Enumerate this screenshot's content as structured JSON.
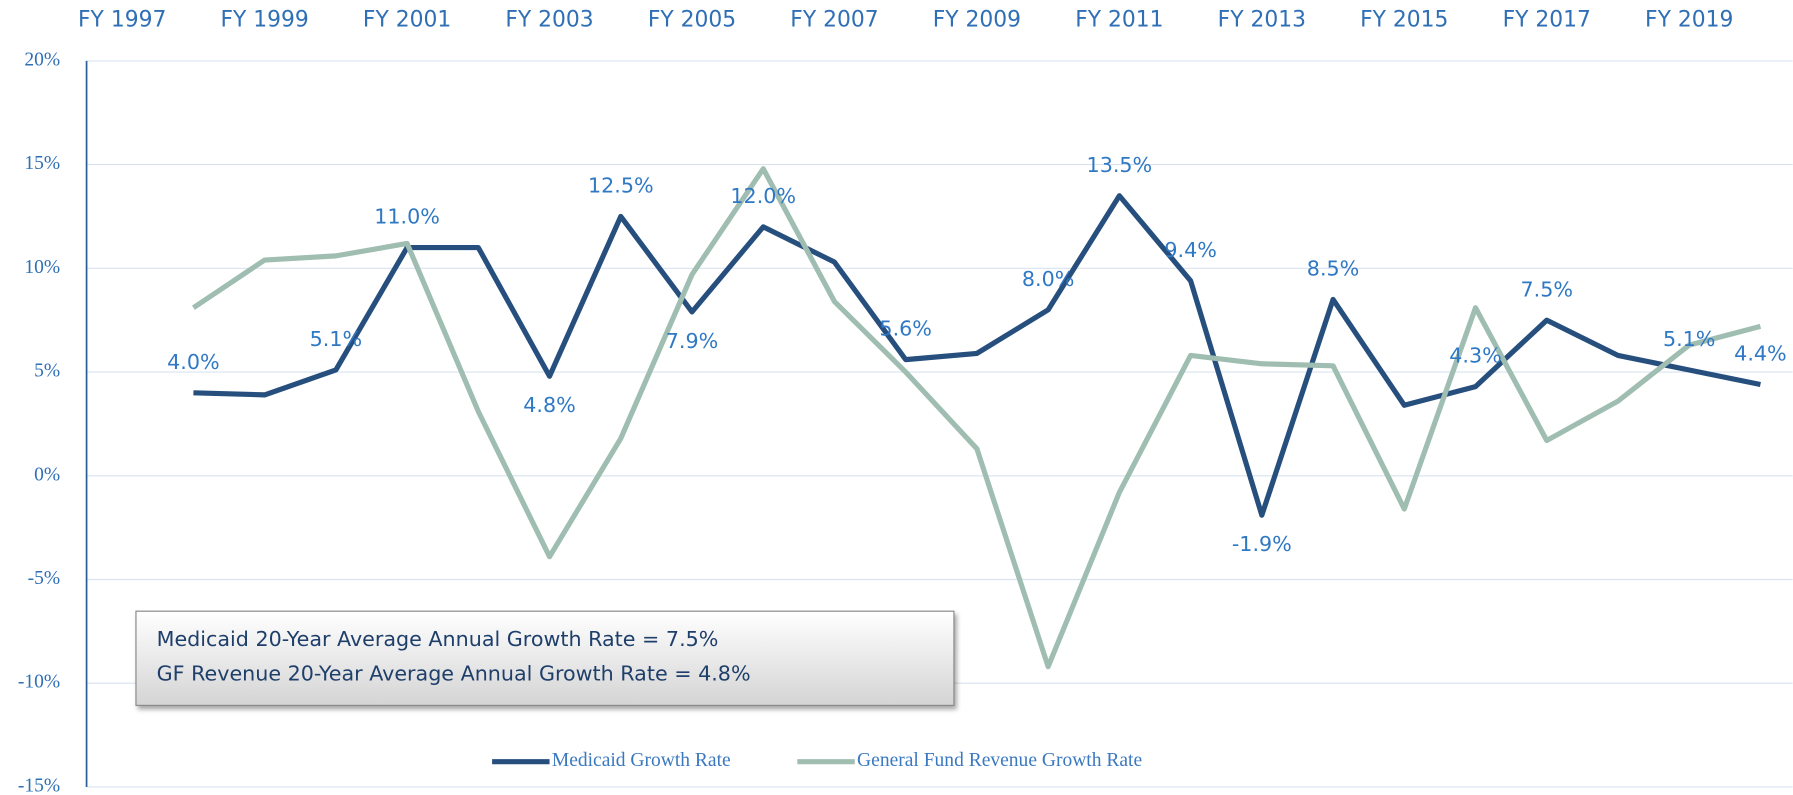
{
  "chart_data": {
    "type": "line",
    "categories": [
      "FY 1997",
      null,
      "FY 1999",
      null,
      "FY 2001",
      null,
      "FY 2003",
      null,
      "FY 2005",
      null,
      "FY 2007",
      null,
      "FY 2009",
      null,
      "FY 2011",
      null,
      "FY 2013",
      null,
      "FY 2015",
      null,
      "FY 2017",
      null,
      "FY 2019",
      null
    ],
    "series": [
      {
        "name": "Medicaid Growth Rate",
        "color": "#264f7e",
        "values": [
          null,
          4.0,
          3.9,
          5.1,
          11.0,
          11.0,
          4.8,
          12.5,
          7.9,
          12.0,
          10.3,
          5.6,
          5.9,
          8.0,
          13.5,
          9.4,
          -1.9,
          8.5,
          3.4,
          4.3,
          7.5,
          5.8,
          5.1,
          4.4
        ],
        "value_labels": [
          null,
          "4.0%",
          null,
          "5.1%",
          "11.0%",
          null,
          "4.8%",
          "12.5%",
          "7.9%",
          "12.0%",
          null,
          "5.6%",
          null,
          "8.0%",
          "13.5%",
          "9.4%",
          "-1.9%",
          "8.5%",
          null,
          "4.3%",
          "7.5%",
          null,
          "5.1%",
          "4.4%"
        ]
      },
      {
        "name": "General Fund Revenue Growth Rate",
        "color": "#9fbeb1",
        "values": [
          null,
          8.1,
          10.4,
          10.6,
          11.2,
          3.1,
          -3.9,
          1.8,
          9.7,
          14.8,
          8.4,
          5.0,
          1.3,
          -9.2,
          -0.8,
          5.8,
          5.4,
          5.3,
          -1.6,
          8.1,
          1.7,
          3.6,
          6.3,
          7.2
        ]
      }
    ],
    "ylim": [
      -15,
      20
    ],
    "yticks": [
      {
        "value": -15,
        "label": "-15%"
      },
      {
        "value": -10,
        "label": "-10%"
      },
      {
        "value": -5,
        "label": "-5%"
      },
      {
        "value": 0,
        "label": "0%"
      },
      {
        "value": 5,
        "label": "5%"
      },
      {
        "value": 10,
        "label": "10%"
      },
      {
        "value": 15,
        "label": "15%"
      },
      {
        "value": 20,
        "label": "20%"
      }
    ],
    "grid": true,
    "legend": "bottom",
    "annotations": [
      "Medicaid 20-Year Average Annual Growth Rate = 7.5%",
      "GF Revenue 20-Year Average Annual Growth Rate = 4.8%"
    ]
  }
}
